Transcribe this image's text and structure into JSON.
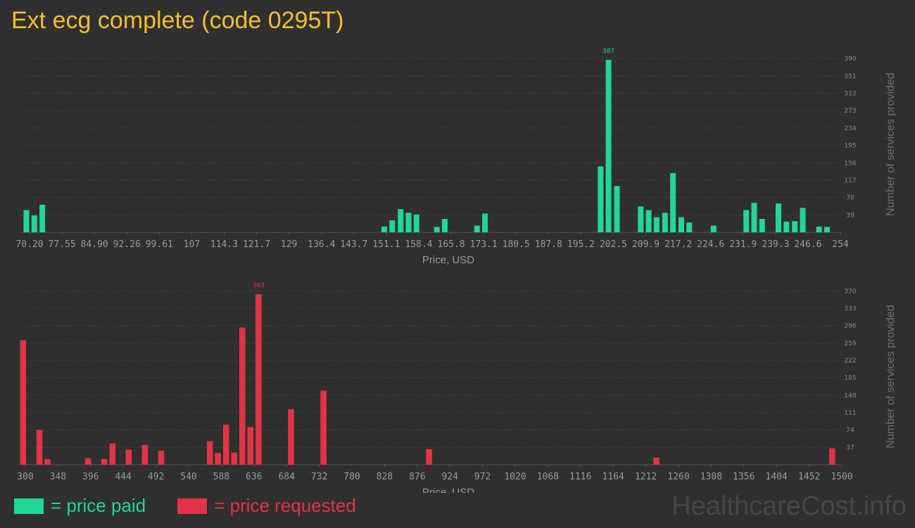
{
  "title": "Ext ecg complete (code 0295T)",
  "watermark": "HealthcareCost.info",
  "legend": {
    "paid_label": "= price paid",
    "requested_label": "= price requested",
    "paid_color": "#22d695",
    "requested_color": "#e23446"
  },
  "chart_data": [
    {
      "type": "bar",
      "name": "price-paid",
      "color": "#22d695",
      "xlabel": "Price, USD",
      "ylabel": "Number of services provided",
      "xlim": [
        69,
        254
      ],
      "ylim": [
        0,
        395
      ],
      "xticks": [
        "70.20",
        "77.55",
        "84.90",
        "92.26",
        "99.61",
        "107",
        "114.3",
        "121.7",
        "129",
        "136.4",
        "143.7",
        "151.1",
        "158.4",
        "165.8",
        "173.1",
        "180.5",
        "187.8",
        "195.2",
        "202.5",
        "209.9",
        "217.2",
        "224.6",
        "231.9",
        "239.3",
        "246.6",
        "254"
      ],
      "yticks": [
        39,
        78,
        117,
        156,
        195,
        234,
        273,
        312,
        351,
        390
      ],
      "peak_label": "387",
      "bars": [
        {
          "x": 70.2,
          "y": 50
        },
        {
          "x": 72.0,
          "y": 38
        },
        {
          "x": 73.8,
          "y": 62
        },
        {
          "x": 151.3,
          "y": 13
        },
        {
          "x": 153.1,
          "y": 27
        },
        {
          "x": 155.0,
          "y": 52
        },
        {
          "x": 156.8,
          "y": 44
        },
        {
          "x": 158.6,
          "y": 40
        },
        {
          "x": 163.2,
          "y": 12
        },
        {
          "x": 165.0,
          "y": 30
        },
        {
          "x": 172.3,
          "y": 15
        },
        {
          "x": 174.1,
          "y": 42
        },
        {
          "x": 200.3,
          "y": 148
        },
        {
          "x": 202.1,
          "y": 387
        },
        {
          "x": 204.0,
          "y": 104
        },
        {
          "x": 209.4,
          "y": 58
        },
        {
          "x": 211.2,
          "y": 50
        },
        {
          "x": 213.0,
          "y": 34
        },
        {
          "x": 214.9,
          "y": 44
        },
        {
          "x": 216.7,
          "y": 133
        },
        {
          "x": 218.6,
          "y": 34
        },
        {
          "x": 220.4,
          "y": 22
        },
        {
          "x": 225.9,
          "y": 15
        },
        {
          "x": 233.3,
          "y": 50
        },
        {
          "x": 235.1,
          "y": 66
        },
        {
          "x": 236.9,
          "y": 30
        },
        {
          "x": 240.6,
          "y": 65
        },
        {
          "x": 242.4,
          "y": 24
        },
        {
          "x": 244.3,
          "y": 25
        },
        {
          "x": 246.1,
          "y": 55
        },
        {
          "x": 249.8,
          "y": 13
        },
        {
          "x": 251.6,
          "y": 12
        }
      ]
    },
    {
      "type": "bar",
      "name": "price-requested",
      "color": "#e23446",
      "xlabel": "Price, USD",
      "ylabel": "Number of services provided",
      "xlim": [
        297,
        1504
      ],
      "ylim": [
        0,
        375
      ],
      "xticks": [
        "300",
        "348",
        "396",
        "444",
        "492",
        "540",
        "588",
        "636",
        "684",
        "732",
        "780",
        "828",
        "876",
        "924",
        "972",
        "1020",
        "1068",
        "1116",
        "1164",
        "1212",
        "1260",
        "1308",
        "1356",
        "1404",
        "1452",
        "1500"
      ],
      "yticks": [
        37,
        74,
        111,
        148,
        185,
        222,
        259,
        296,
        333,
        370
      ],
      "peak_label": "363",
      "bars": [
        {
          "x": 300,
          "y": 265
        },
        {
          "x": 324,
          "y": 74
        },
        {
          "x": 336,
          "y": 12
        },
        {
          "x": 396,
          "y": 14
        },
        {
          "x": 420,
          "y": 12
        },
        {
          "x": 432,
          "y": 45
        },
        {
          "x": 456,
          "y": 32
        },
        {
          "x": 480,
          "y": 42
        },
        {
          "x": 504,
          "y": 30
        },
        {
          "x": 576,
          "y": 50
        },
        {
          "x": 588,
          "y": 25
        },
        {
          "x": 600,
          "y": 85
        },
        {
          "x": 612,
          "y": 26
        },
        {
          "x": 624,
          "y": 292
        },
        {
          "x": 636,
          "y": 80
        },
        {
          "x": 648,
          "y": 363
        },
        {
          "x": 696,
          "y": 118
        },
        {
          "x": 744,
          "y": 158
        },
        {
          "x": 900,
          "y": 33
        },
        {
          "x": 1236,
          "y": 15
        },
        {
          "x": 1496,
          "y": 35
        }
      ]
    }
  ]
}
